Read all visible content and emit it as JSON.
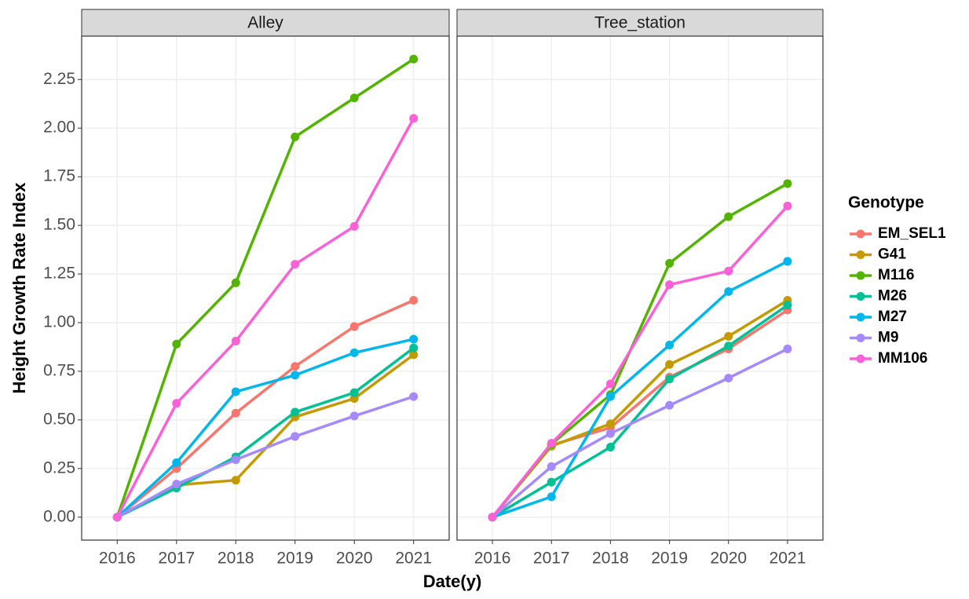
{
  "chart_data": {
    "type": "line",
    "x_label": "Date(y)",
    "y_label": "Height Growth Rate Index",
    "legend_title": "Genotype",
    "legend": "right",
    "grid": true,
    "x": [
      2016,
      2017,
      2018,
      2019,
      2020,
      2021
    ],
    "xlim": [
      2015.4,
      2021.6
    ],
    "xticks": [
      2016,
      2017,
      2018,
      2019,
      2020,
      2021
    ],
    "ylim": [
      -0.118,
      2.473
    ],
    "yticks": [
      {
        "value": 0,
        "label": "0.00"
      },
      {
        "value": 0.25,
        "label": "0.25"
      },
      {
        "value": 0.5,
        "label": "0.50"
      },
      {
        "value": 0.75,
        "label": "0.75"
      },
      {
        "value": 1,
        "label": "1.00"
      },
      {
        "value": 1.25,
        "label": "1.25"
      },
      {
        "value": 1.5,
        "label": "1.50"
      },
      {
        "value": 1.75,
        "label": "1.75"
      },
      {
        "value": 2,
        "label": "2.00"
      },
      {
        "value": 2.25,
        "label": "2.25"
      }
    ],
    "series": [
      {
        "name": "EM_SEL1",
        "color": "#F8766D"
      },
      {
        "name": "G41",
        "color": "#C49A00"
      },
      {
        "name": "M116",
        "color": "#53B400"
      },
      {
        "name": "M26",
        "color": "#00C094"
      },
      {
        "name": "M27",
        "color": "#00B6EB"
      },
      {
        "name": "M9",
        "color": "#A58AFF"
      },
      {
        "name": "MM106",
        "color": "#FB61D7"
      }
    ],
    "facets": [
      {
        "title": "Alley",
        "series": [
          {
            "values": [
              0,
              0.25,
              0.535,
              0.775,
              0.98,
              1.115
            ]
          },
          {
            "values": [
              0,
              0.165,
              0.19,
              0.515,
              0.61,
              0.835
            ]
          },
          {
            "values": [
              0,
              0.89,
              1.205,
              1.955,
              2.155,
              2.355
            ]
          },
          {
            "values": [
              0,
              0.15,
              0.31,
              0.54,
              0.64,
              0.87
            ]
          },
          {
            "values": [
              0,
              0.28,
              0.645,
              0.73,
              0.845,
              0.915
            ]
          },
          {
            "values": [
              0,
              0.17,
              0.295,
              0.415,
              0.52,
              0.62
            ]
          },
          {
            "values": [
              0,
              0.585,
              0.905,
              1.3,
              1.495,
              2.05
            ]
          }
        ]
      },
      {
        "title": "Tree_station",
        "series": [
          {
            "values": [
              0,
              0.37,
              0.46,
              0.72,
              0.865,
              1.065
            ]
          },
          {
            "values": [
              0,
              0.365,
              0.48,
              0.785,
              0.93,
              1.115
            ]
          },
          {
            "values": [
              0,
              0.375,
              0.63,
              1.305,
              1.545,
              1.715
            ]
          },
          {
            "values": [
              0,
              0.18,
              0.36,
              0.71,
              0.88,
              1.09
            ]
          },
          {
            "values": [
              0,
              0.105,
              0.62,
              0.885,
              1.16,
              1.315
            ]
          },
          {
            "values": [
              0,
              0.26,
              0.43,
              0.575,
              0.715,
              0.865
            ]
          },
          {
            "values": [
              0,
              0.38,
              0.685,
              1.195,
              1.265,
              1.6
            ]
          }
        ]
      }
    ]
  }
}
